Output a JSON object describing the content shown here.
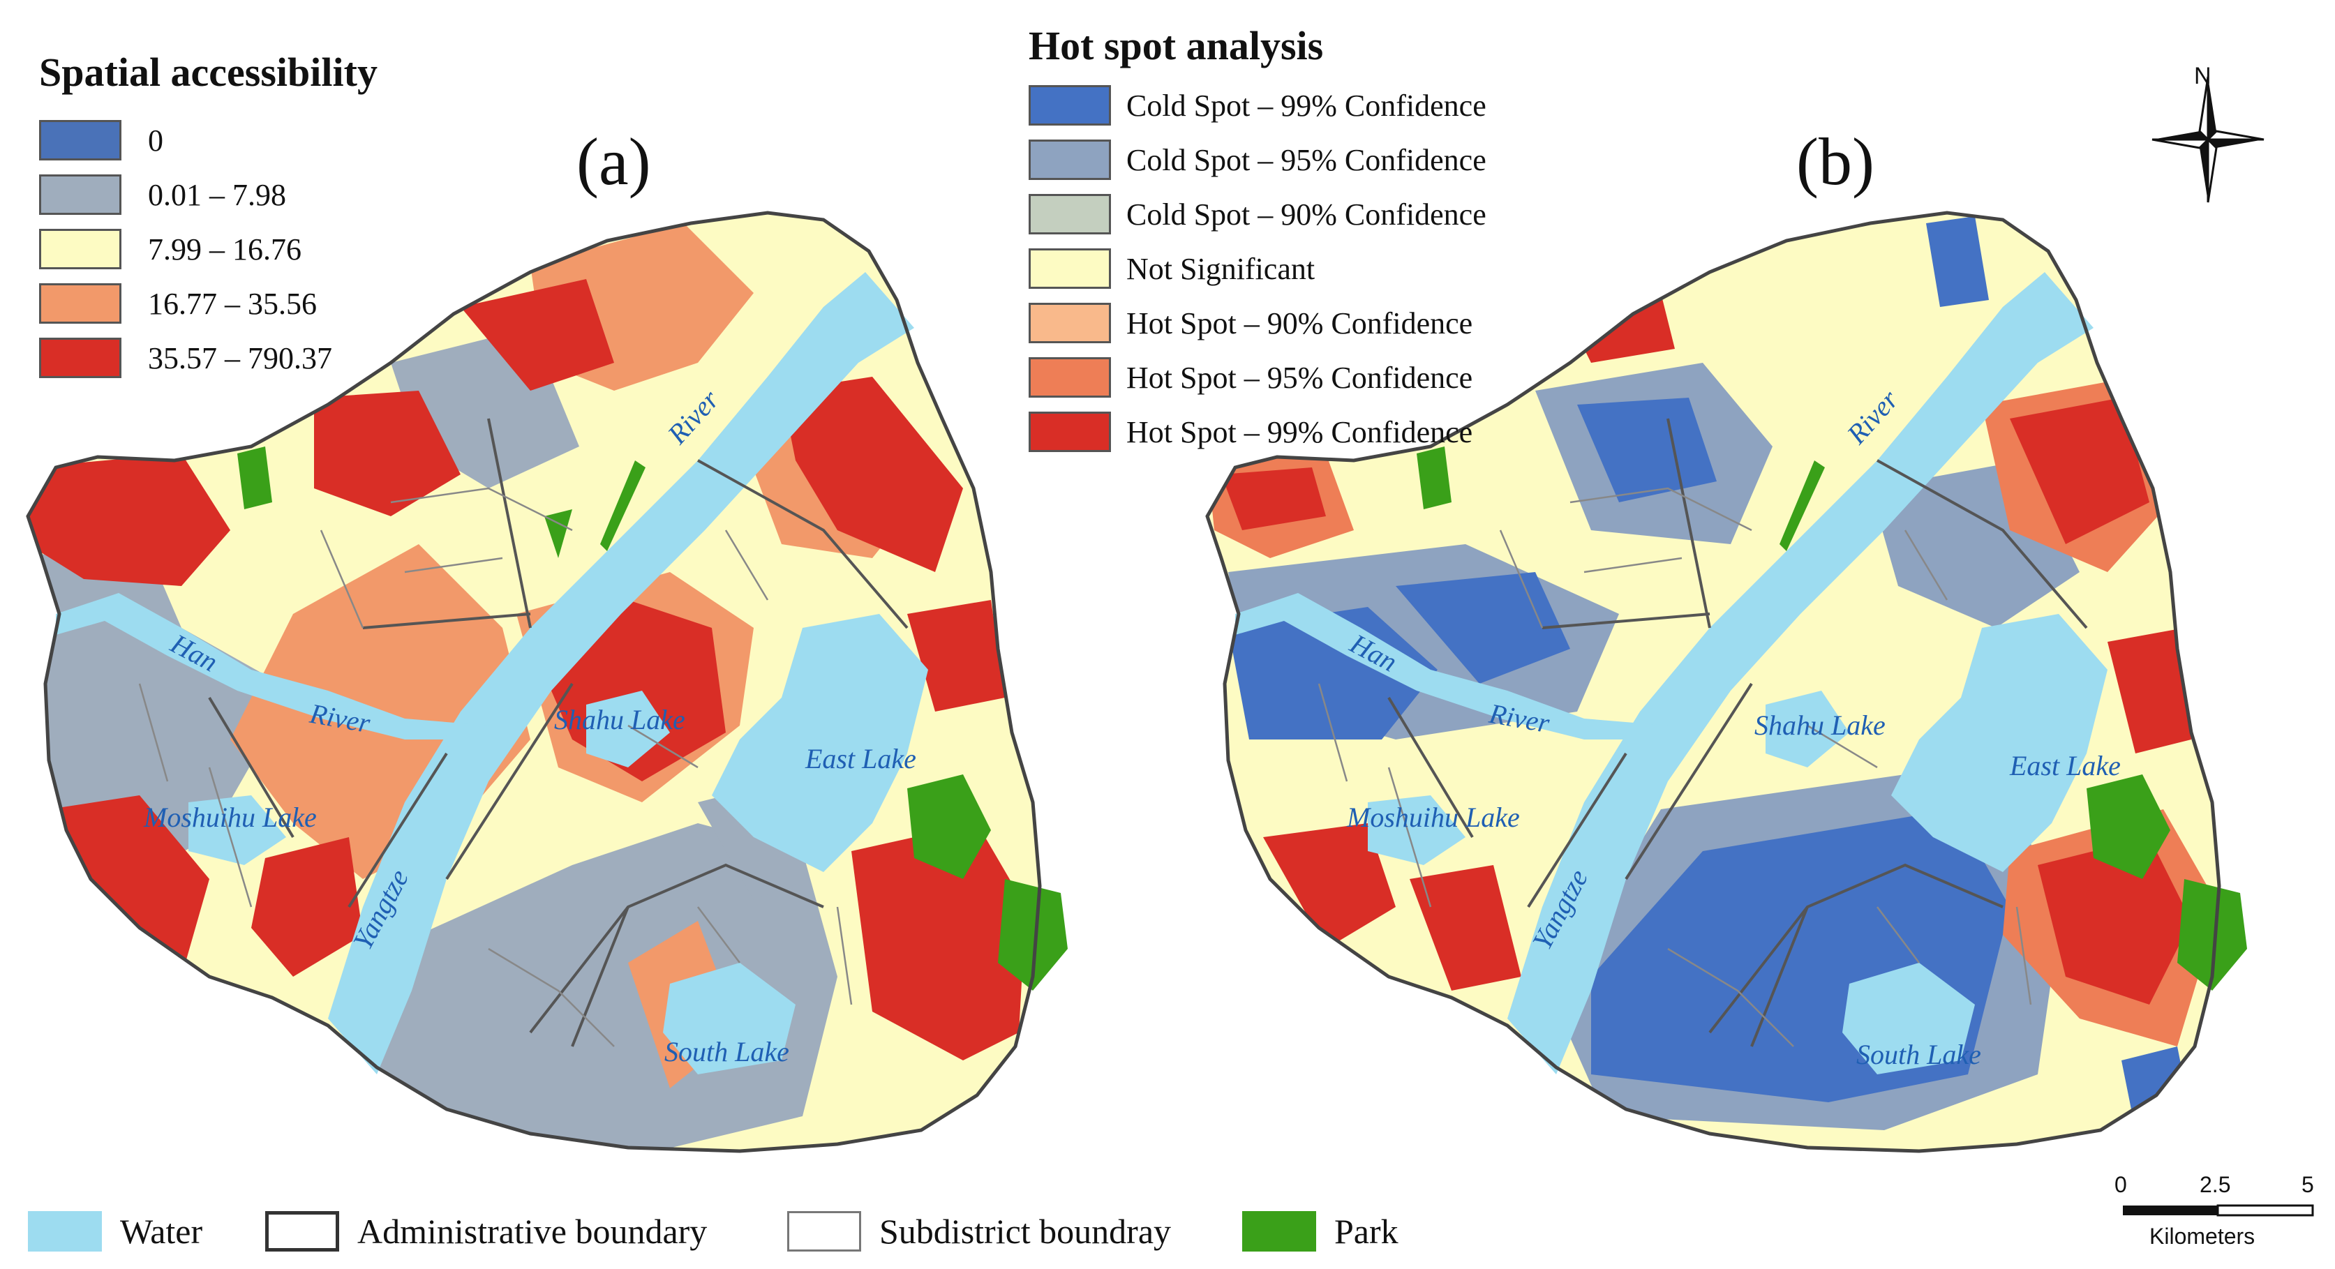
{
  "legend_accessibility": {
    "title": "Spatial accessibility",
    "items": [
      {
        "label": "0",
        "color": "#4a72b8"
      },
      {
        "label": "0.01 – 7.98",
        "color": "#9fadbd"
      },
      {
        "label": "7.99 – 16.76",
        "color": "#fdfbc3"
      },
      {
        "label": "16.77 – 35.56",
        "color": "#f2996a"
      },
      {
        "label": "35.57 – 790.37",
        "color": "#d92e26"
      }
    ]
  },
  "legend_hotspot": {
    "title": "Hot spot analysis",
    "items": [
      {
        "label": "Cold Spot – 99% Confidence",
        "color": "#4472c4"
      },
      {
        "label": "Cold Spot – 95% Confidence",
        "color": "#8ea3c0"
      },
      {
        "label": "Cold Spot – 90% Confidence",
        "color": "#c4cfbf"
      },
      {
        "label": "Not Significant",
        "color": "#fdfbc3"
      },
      {
        "label": "Hot Spot – 90% Confidence",
        "color": "#f9b98b"
      },
      {
        "label": "Hot Spot – 95% Confidence",
        "color": "#ee7e56"
      },
      {
        "label": "Hot Spot – 99% Confidence",
        "color": "#d92e26"
      }
    ]
  },
  "panels": {
    "a_label": "(a)",
    "b_label": "(b)"
  },
  "places": {
    "han_river_1": "Han",
    "han_river_2": "River",
    "river_1": "River",
    "yangtze": "Yangtze",
    "shahu_lake": "Shahu Lake",
    "east_lake": "East Lake",
    "moshuihu_lake": "Moshuihu Lake",
    "south_lake": "South Lake"
  },
  "bottom_legend": [
    {
      "label": "Water",
      "color": "#9ddcf0",
      "style": "fill"
    },
    {
      "label": "Administrative boundary",
      "color": "#333333",
      "style": "outline-thick"
    },
    {
      "label": "Subdistrict boundray",
      "color": "#777777",
      "style": "outline-thin"
    },
    {
      "label": "Park",
      "color": "#3aa019",
      "style": "fill"
    }
  ],
  "north_arrow": {
    "label": "N"
  },
  "scale_bar": {
    "ticks": [
      "0",
      "2.5",
      "5"
    ],
    "unit": "Kilometers"
  },
  "colors": {
    "water": "#9ddcf0",
    "park": "#3aa019",
    "boundary": "#444444"
  }
}
